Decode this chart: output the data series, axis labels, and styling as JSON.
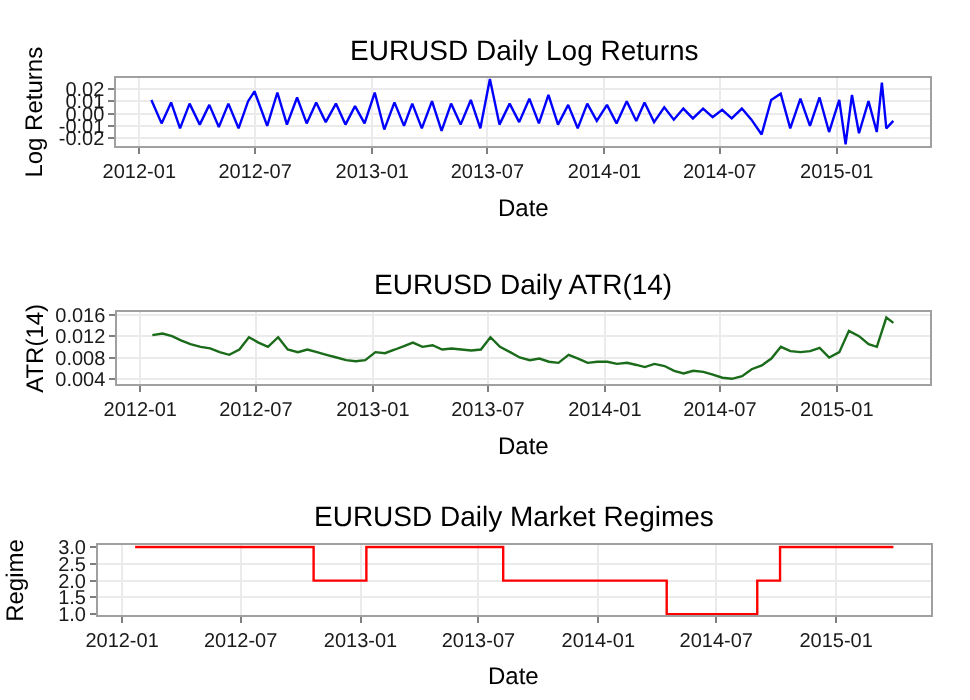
{
  "chart_data": [
    {
      "type": "line",
      "title": "EURUSD Daily Log Returns",
      "xlabel": "Date",
      "ylabel": "Log Returns",
      "grid": true,
      "xlim": [
        "2011-11-26",
        "2015-05-28"
      ],
      "xticks": [
        "2012-01",
        "2012-07",
        "2013-01",
        "2013-07",
        "2014-01",
        "2014-07",
        "2015-01"
      ],
      "ylim": [
        -0.026,
        0.029
      ],
      "yticks": [
        {
          "value": -0.02,
          "label": "-0.02"
        },
        {
          "value": -0.01,
          "label": "-0.01"
        },
        {
          "value": 0,
          "label": "0.00"
        },
        0.01,
        0.02
      ],
      "series": [
        {
          "color": "#0000ff",
          "x": [
            "2012-01-20",
            "2012-02-05",
            "2012-02-20",
            "2012-03-05",
            "2012-03-20",
            "2012-04-05",
            "2012-04-20",
            "2012-05-05",
            "2012-05-20",
            "2012-06-05",
            "2012-06-20",
            "2012-06-30",
            "2012-07-20",
            "2012-08-05",
            "2012-08-20",
            "2012-09-05",
            "2012-09-20",
            "2012-10-05",
            "2012-10-20",
            "2012-11-05",
            "2012-11-20",
            "2012-12-05",
            "2012-12-20",
            "2013-01-05",
            "2013-01-20",
            "2013-02-05",
            "2013-02-20",
            "2013-03-05",
            "2013-03-20",
            "2013-04-05",
            "2013-04-20",
            "2013-05-05",
            "2013-05-20",
            "2013-06-05",
            "2013-06-20",
            "2013-07-05",
            "2013-07-20",
            "2013-08-05",
            "2013-08-20",
            "2013-09-05",
            "2013-09-20",
            "2013-10-05",
            "2013-10-20",
            "2013-11-05",
            "2013-11-20",
            "2013-12-05",
            "2013-12-20",
            "2014-01-05",
            "2014-01-20",
            "2014-02-05",
            "2014-02-20",
            "2014-03-05",
            "2014-03-20",
            "2014-04-05",
            "2014-04-20",
            "2014-05-05",
            "2014-05-20",
            "2014-06-05",
            "2014-06-20",
            "2014-07-05",
            "2014-07-20",
            "2014-08-05",
            "2014-08-20",
            "2014-09-05",
            "2014-09-20",
            "2014-10-05",
            "2014-10-20",
            "2014-11-05",
            "2014-11-20",
            "2014-12-05",
            "2014-12-20",
            "2015-01-05",
            "2015-01-15",
            "2015-01-25",
            "2015-02-05",
            "2015-02-20",
            "2015-03-05",
            "2015-03-13",
            "2015-03-20",
            "2015-03-31"
          ],
          "values": [
            0.011,
            -0.008,
            0.009,
            -0.012,
            0.008,
            -0.009,
            0.007,
            -0.011,
            0.008,
            -0.012,
            0.01,
            0.018,
            -0.01,
            0.017,
            -0.009,
            0.013,
            -0.008,
            0.009,
            -0.007,
            0.008,
            -0.009,
            0.006,
            -0.008,
            0.017,
            -0.013,
            0.009,
            -0.01,
            0.008,
            -0.012,
            0.01,
            -0.014,
            0.008,
            -0.009,
            0.011,
            -0.012,
            0.028,
            -0.009,
            0.008,
            -0.007,
            0.012,
            -0.008,
            0.015,
            -0.009,
            0.007,
            -0.012,
            0.008,
            -0.006,
            0.007,
            -0.008,
            0.01,
            -0.006,
            0.009,
            -0.007,
            0.005,
            -0.005,
            0.004,
            -0.004,
            0.004,
            -0.003,
            0.003,
            -0.004,
            0.004,
            -0.005,
            -0.017,
            0.011,
            0.016,
            -0.012,
            0.012,
            -0.01,
            0.013,
            -0.015,
            0.011,
            -0.025,
            0.015,
            -0.016,
            0.01,
            -0.015,
            0.025,
            -0.012,
            -0.006
          ]
        }
      ]
    },
    {
      "type": "line",
      "title": "EURUSD Daily ATR(14)",
      "xlabel": "Date",
      "ylabel": "ATR(14)",
      "grid": true,
      "xlim": [
        "2011-11-26",
        "2015-05-28"
      ],
      "xticks": [
        "2012-01",
        "2012-07",
        "2013-01",
        "2013-07",
        "2014-01",
        "2014-07",
        "2015-01"
      ],
      "ylim": [
        0.0031,
        0.0165
      ],
      "yticks": [
        0.004,
        0.008,
        0.012,
        0.016
      ],
      "series": [
        {
          "color": "#1a6b1a",
          "x": [
            "2012-01-20",
            "2012-02-05",
            "2012-02-20",
            "2012-03-05",
            "2012-03-20",
            "2012-04-05",
            "2012-04-20",
            "2012-05-05",
            "2012-05-20",
            "2012-06-05",
            "2012-06-20",
            "2012-07-05",
            "2012-07-20",
            "2012-08-05",
            "2012-08-20",
            "2012-09-05",
            "2012-09-20",
            "2012-10-05",
            "2012-10-20",
            "2012-11-05",
            "2012-11-20",
            "2012-12-05",
            "2012-12-20",
            "2013-01-05",
            "2013-01-20",
            "2013-02-05",
            "2013-02-20",
            "2013-03-05",
            "2013-03-20",
            "2013-04-05",
            "2013-04-20",
            "2013-05-05",
            "2013-05-20",
            "2013-06-05",
            "2013-06-20",
            "2013-07-05",
            "2013-07-20",
            "2013-08-05",
            "2013-08-20",
            "2013-09-05",
            "2013-09-20",
            "2013-10-05",
            "2013-10-20",
            "2013-11-05",
            "2013-11-20",
            "2013-12-05",
            "2013-12-20",
            "2014-01-05",
            "2014-01-20",
            "2014-02-05",
            "2014-02-20",
            "2014-03-05",
            "2014-03-20",
            "2014-04-05",
            "2014-04-20",
            "2014-05-05",
            "2014-05-20",
            "2014-06-05",
            "2014-06-20",
            "2014-07-05",
            "2014-07-20",
            "2014-08-05",
            "2014-08-20",
            "2014-09-05",
            "2014-09-20",
            "2014-10-05",
            "2014-10-20",
            "2014-11-05",
            "2014-11-20",
            "2014-12-05",
            "2014-12-20",
            "2015-01-05",
            "2015-01-20",
            "2015-02-05",
            "2015-02-20",
            "2015-03-05",
            "2015-03-20",
            "2015-03-31"
          ],
          "values": [
            0.0122,
            0.0125,
            0.012,
            0.0112,
            0.0105,
            0.01,
            0.0097,
            0.009,
            0.0085,
            0.0095,
            0.0118,
            0.0108,
            0.01,
            0.0118,
            0.0095,
            0.009,
            0.0095,
            0.009,
            0.0085,
            0.008,
            0.0075,
            0.0073,
            0.0075,
            0.009,
            0.0088,
            0.0095,
            0.0102,
            0.0108,
            0.01,
            0.0103,
            0.0095,
            0.0097,
            0.0095,
            0.0093,
            0.0095,
            0.0118,
            0.01,
            0.009,
            0.008,
            0.0075,
            0.0078,
            0.0072,
            0.007,
            0.0085,
            0.0078,
            0.007,
            0.0072,
            0.0072,
            0.0068,
            0.007,
            0.0066,
            0.0062,
            0.0068,
            0.0064,
            0.0055,
            0.005,
            0.0055,
            0.0053,
            0.0048,
            0.0042,
            0.004,
            0.0045,
            0.0058,
            0.0065,
            0.0078,
            0.01,
            0.0092,
            0.009,
            0.0092,
            0.0098,
            0.008,
            0.009,
            0.013,
            0.012,
            0.0105,
            0.01,
            0.0155,
            0.0145
          ]
        }
      ]
    },
    {
      "type": "step",
      "title": "EURUSD Daily Market Regimes",
      "xlabel": "Date",
      "ylabel": "Regime",
      "grid": true,
      "xlim": [
        "2011-11-25",
        "2015-05-27"
      ],
      "xticks": [
        "2012-01",
        "2012-07",
        "2013-01",
        "2013-07",
        "2014-01",
        "2014-07",
        "2015-01"
      ],
      "ylim": [
        0.97,
        3.05
      ],
      "yticks": [
        {
          "value": 1,
          "label": "1.0"
        },
        1.5,
        {
          "value": 2,
          "label": "2.0"
        },
        2.5,
        {
          "value": 3,
          "label": "3.0"
        }
      ],
      "series": [
        {
          "color": "#ff0000",
          "x": [
            "2012-01-21",
            "2012-10-21",
            "2013-01-10",
            "2013-08-08",
            "2014-04-16",
            "2014-09-02",
            "2014-10-07",
            "2015-03-30"
          ],
          "values": [
            3,
            2,
            3,
            2,
            1,
            2,
            3,
            3
          ]
        }
      ]
    }
  ]
}
